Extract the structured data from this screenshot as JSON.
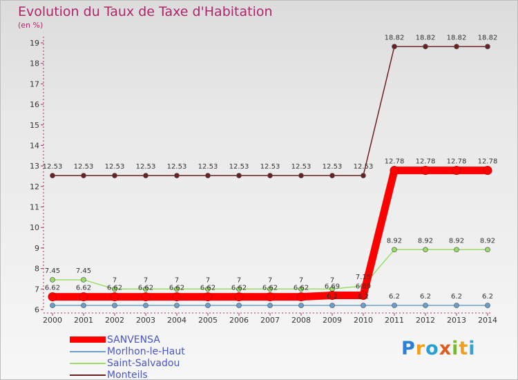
{
  "header": {
    "title": "Evolution du Taux de Taxe d'Habitation",
    "subtitle": "(en %)"
  },
  "logo": {
    "text": "Proxiti"
  },
  "chart_data": {
    "type": "line",
    "title": "Evolution du Taux de Taxe d'Habitation",
    "ylabel": "(en %)",
    "xlabel": "",
    "categories": [
      "2000",
      "2001",
      "2002",
      "2003",
      "2004",
      "2005",
      "2006",
      "2007",
      "2008",
      "2009",
      "2010",
      "2011",
      "2012",
      "2013",
      "2014"
    ],
    "ylim": [
      6,
      19
    ],
    "yticks": [
      6,
      7,
      8,
      9,
      10,
      11,
      12,
      13,
      14,
      15,
      16,
      17,
      18,
      19
    ],
    "legend_position": "bottom-left",
    "grid": false,
    "series": [
      {
        "name": "SANVENSA",
        "color": "#ff0000",
        "values": [
          6.62,
          6.62,
          6.62,
          6.62,
          6.62,
          6.62,
          6.62,
          6.62,
          6.62,
          6.69,
          6.69,
          12.78,
          12.78,
          12.78,
          12.78
        ],
        "labels": [
          "6.62",
          "6.62",
          "6.62",
          "6.62",
          "6.62",
          "6.62",
          "6.62",
          "6.62",
          "6.62",
          "6.69",
          "6.69",
          "12.78",
          "12.78",
          "12.78",
          "12.78"
        ]
      },
      {
        "name": "Morlhon-le-Haut",
        "color": "#6a9ecf",
        "values": [
          6.2,
          6.2,
          6.2,
          6.2,
          6.2,
          6.2,
          6.2,
          6.2,
          6.2,
          6.2,
          6.2,
          6.2,
          6.2,
          6.2,
          6.2
        ],
        "labels": [
          "",
          "",
          "",
          "",
          "",
          "",
          "",
          "",
          "",
          "6.2",
          "6.2",
          "6.2",
          "6.2",
          "6.2",
          "6.2"
        ]
      },
      {
        "name": "Saint-Salvadou",
        "color": "#99dd66",
        "values": [
          7.45,
          7.45,
          7,
          7,
          7,
          7,
          7,
          7,
          7,
          7,
          7.15,
          8.92,
          8.92,
          8.92,
          8.92
        ],
        "labels": [
          "7.45",
          "7.45",
          "7",
          "7",
          "7",
          "7",
          "7",
          "7",
          "7",
          "7",
          "7.15",
          "8.92",
          "8.92",
          "8.92",
          "8.92"
        ]
      },
      {
        "name": "Monteils",
        "color": "#6b1f1f",
        "values": [
          12.53,
          12.53,
          12.53,
          12.53,
          12.53,
          12.53,
          12.53,
          12.53,
          12.53,
          12.53,
          12.53,
          18.82,
          18.82,
          18.82,
          18.82
        ],
        "labels": [
          "12.53",
          "12.53",
          "12.53",
          "12.53",
          "12.53",
          "12.53",
          "12.53",
          "12.53",
          "12.53",
          "12.53",
          "12.53",
          "18.82",
          "18.82",
          "18.82",
          "18.82"
        ]
      }
    ]
  }
}
